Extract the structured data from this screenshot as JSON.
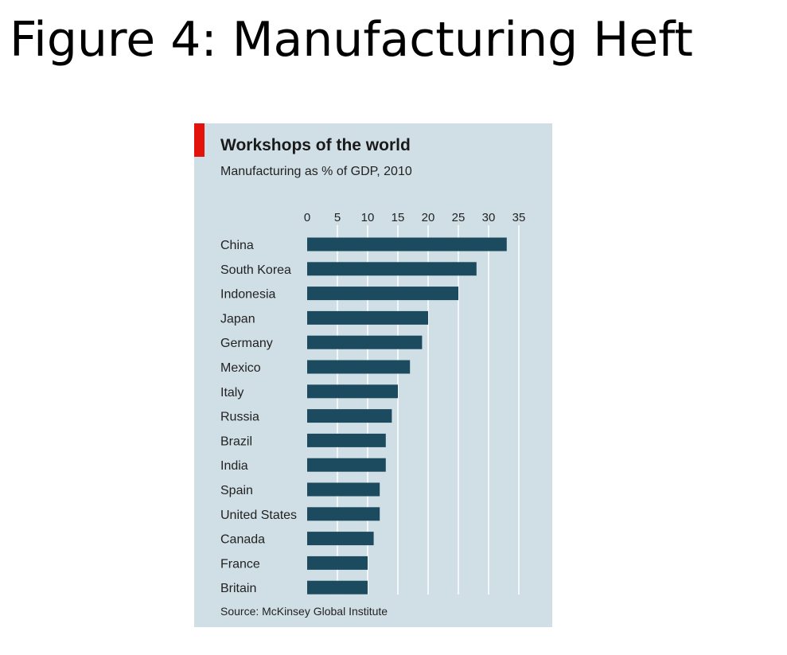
{
  "slide": {
    "title": "Figure 4: Manufacturing Heft"
  },
  "colors": {
    "accent": "#e3120b",
    "bar": "#1c4b5f",
    "panel": "#d0dfe6",
    "grid": "#ffffff"
  },
  "chart_data": {
    "type": "bar",
    "orientation": "horizontal",
    "title": "Workshops of the world",
    "subtitle": "Manufacturing as % of GDP, 2010",
    "source": "Source: McKinsey Global Institute",
    "categories": [
      "China",
      "South Korea",
      "Indonesia",
      "Japan",
      "Germany",
      "Mexico",
      "Italy",
      "Russia",
      "Brazil",
      "India",
      "Spain",
      "United States",
      "Canada",
      "France",
      "Britain"
    ],
    "values": [
      33,
      28,
      25,
      20,
      19,
      17,
      15,
      14,
      13,
      13,
      12,
      12,
      11,
      10,
      10
    ],
    "xlim": [
      0,
      35
    ],
    "xticks": [
      0,
      5,
      10,
      15,
      20,
      25,
      30,
      35
    ],
    "xaxis_position": "top",
    "grid": true
  }
}
